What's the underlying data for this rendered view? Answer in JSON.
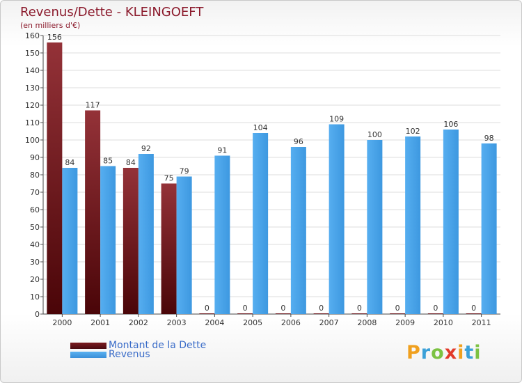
{
  "chart_data": {
    "type": "bar",
    "title": "Revenus/Dette - KLEINGOEFT",
    "subtitle": "(en milliers d'€)",
    "categories": [
      "2000",
      "2001",
      "2002",
      "2003",
      "2004",
      "2005",
      "2006",
      "2007",
      "2008",
      "2009",
      "2010",
      "2011"
    ],
    "series": [
      {
        "name": "Montant de la Dette",
        "color": "#7a1a1f",
        "values": [
          156,
          117,
          84,
          75,
          0,
          0,
          0,
          0,
          0,
          0,
          0,
          0
        ]
      },
      {
        "name": "Revenus",
        "color": "#4aa3e8",
        "values": [
          84,
          85,
          92,
          79,
          91,
          104,
          96,
          109,
          100,
          102,
          106,
          98
        ]
      }
    ],
    "ylim": [
      0,
      160
    ],
    "yticks": [
      0,
      10,
      20,
      30,
      40,
      50,
      60,
      70,
      80,
      90,
      100,
      110,
      120,
      130,
      140,
      150,
      160
    ],
    "grid": true,
    "legend_position": "bottom-left"
  },
  "logo": {
    "letters": [
      "P",
      "r",
      "o",
      "x",
      "i",
      "t",
      "i"
    ],
    "colors": [
      "#f0a01e",
      "#3aa0d8",
      "#7cc242",
      "#e23a2a",
      "#f0a01e",
      "#3aa0d8",
      "#7cc242"
    ]
  }
}
